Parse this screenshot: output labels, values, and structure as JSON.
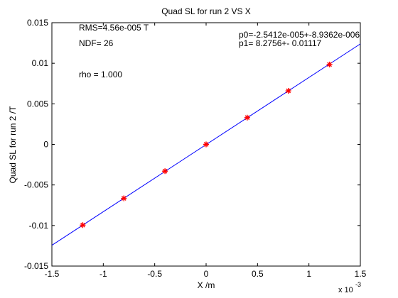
{
  "chart_data": {
    "type": "scatter",
    "title": "Quad SL for run 2 VS X",
    "xlabel": "X /m",
    "ylabel": "Quad SL for run 2 /T",
    "x_exponent_label": "x 10",
    "x_exponent_power": "-3",
    "x_multiplier": 0.001,
    "xlim": [
      -1.5,
      1.5
    ],
    "ylim": [
      -0.015,
      0.015
    ],
    "x_ticks": [
      -1.5,
      -1,
      -0.5,
      0,
      0.5,
      1,
      1.5
    ],
    "x_tick_labels": [
      "-1.5",
      "-1",
      "-0.5",
      "0",
      "0.5",
      "1",
      "1.5"
    ],
    "y_ticks": [
      -0.015,
      -0.01,
      -0.005,
      0,
      0.005,
      0.01,
      0.015
    ],
    "y_tick_labels": [
      "-0.015",
      "-0.01",
      "-0.005",
      "0",
      "0.005",
      "0.01",
      "0.015"
    ],
    "grid": false,
    "points": {
      "x": [
        -1.2,
        -0.8,
        -0.4,
        0.0,
        0.4,
        0.8,
        1.2
      ],
      "y": [
        -0.00995,
        -0.00665,
        -0.0033,
        0.0,
        0.0033,
        0.0066,
        0.00985
      ],
      "color": "#ff0000",
      "marker": "asterisk"
    },
    "fit_line": {
      "slope": 8.2756,
      "intercept": -2.5412e-05,
      "color": "#0000ff"
    },
    "annotations": {
      "rms": "RMS=4.56e-005 T",
      "ndf": "NDF=   26",
      "rho": "rho    =  1.000",
      "p0": "p0=-2.5412e-005+-8.9362e-006",
      "p1": "p1=   8.2756+-  0.01117"
    }
  }
}
